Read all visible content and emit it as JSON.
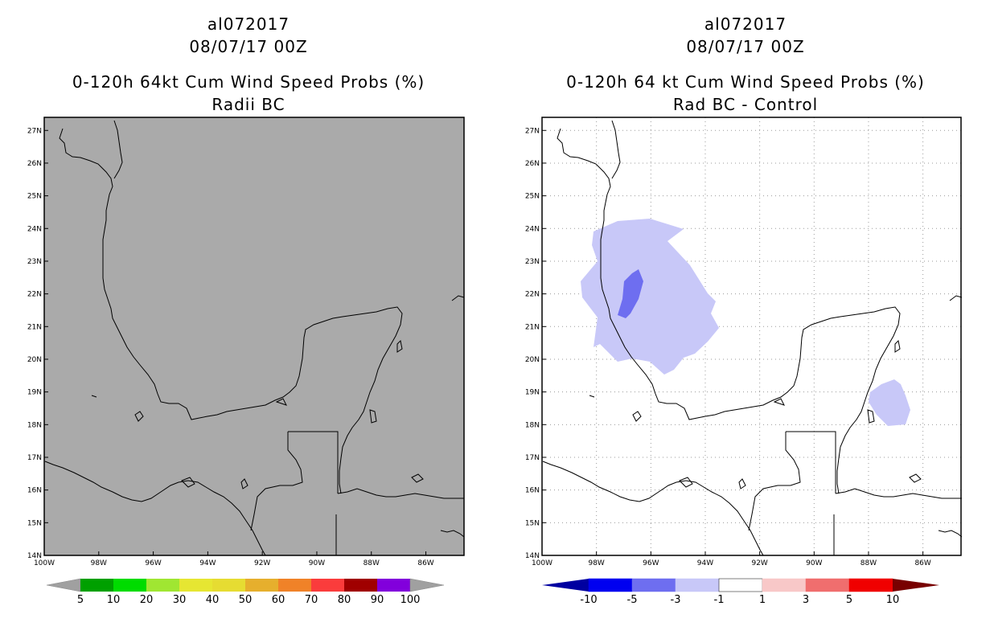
{
  "left": {
    "title_line1": "al072017",
    "title_line2": "08/07/17 00Z",
    "title_line3": "0-120h 64kt Cum Wind Speed Probs (%)",
    "title_line4": "Radii BC",
    "map_background": "#aaaaaa",
    "colorbar": {
      "colors": [
        "#00a000",
        "#00dc00",
        "#a0e632",
        "#e6e632",
        "#e6dc32",
        "#e6af2d",
        "#f08228",
        "#fa3c3c",
        "#a00000",
        "#8200dc"
      ],
      "end_colors": [
        "#a0a0a0",
        "#a0a0a0"
      ],
      "labels": [
        "5",
        "10",
        "20",
        "30",
        "40",
        "50",
        "60",
        "70",
        "80",
        "90",
        "100"
      ]
    }
  },
  "right": {
    "title_line1": "al072017",
    "title_line2": "08/07/17 00Z",
    "title_line3": "0-120h 64 kt Cum Wind Speed Probs (%)",
    "title_line4": "Rad BC - Control",
    "map_background": "#ffffff",
    "shade_light": "#c8c8f8",
    "shade_mid": "#6e6ef0",
    "colorbar": {
      "colors": [
        "#0000a0",
        "#0000f0",
        "#6e6ef0",
        "#c8c8f8",
        "#ffffff",
        "#f8c8c8",
        "#f06e6e",
        "#f00000",
        "#780000"
      ],
      "labels": [
        "-10",
        "-5",
        "-3",
        "-1",
        "1",
        "3",
        "5",
        "10"
      ]
    }
  },
  "axes": {
    "lat_labels": [
      "27N",
      "26N",
      "25N",
      "24N",
      "23N",
      "22N",
      "21N",
      "20N",
      "19N",
      "18N",
      "17N",
      "16N",
      "15N",
      "14N"
    ],
    "lon_labels": [
      "100W",
      "98W",
      "96W",
      "94W",
      "92W",
      "90W",
      "88W",
      "86W"
    ],
    "lat_range": [
      14,
      27.4
    ],
    "lon_range": [
      -100,
      -84.6
    ]
  }
}
